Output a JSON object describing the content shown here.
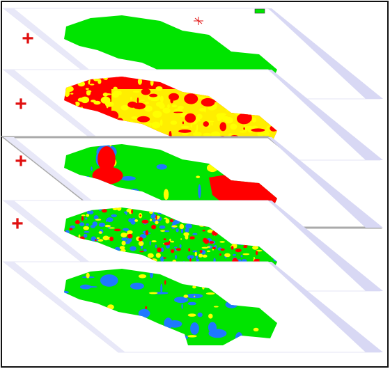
{
  "operators": [
    "+",
    "+",
    "+",
    "+"
  ]
}
